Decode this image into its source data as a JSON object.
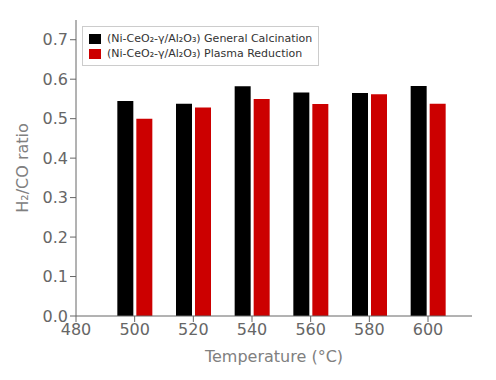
{
  "chart_data": {
    "type": "bar",
    "x": [
      500,
      520,
      540,
      560,
      580,
      600
    ],
    "series": [
      {
        "name": "(Ni-CeO₂-γ/Al₂O₃) General Calcination",
        "color": "#000000",
        "values": [
          0.545,
          0.538,
          0.582,
          0.566,
          0.565,
          0.583
        ]
      },
      {
        "name": "(Ni-CeO₂-γ/Al₂O₃) Plasma Reduction",
        "color": "#cc0000",
        "values": [
          0.5,
          0.528,
          0.55,
          0.537,
          0.562,
          0.538
        ]
      }
    ],
    "xlabel": "Temperature (°C)",
    "ylabel": "H₂/CO ratio",
    "xlim": [
      480,
      615
    ],
    "ylim": [
      0.0,
      0.75
    ],
    "xticks": [
      480,
      500,
      520,
      540,
      560,
      580,
      600
    ],
    "yticks": [
      {
        "value": 0.0,
        "label": "0.0"
      },
      0.1,
      0.2,
      0.3,
      0.4,
      0.5,
      0.6,
      0.7
    ],
    "legend": "upper left",
    "grid": false
  }
}
